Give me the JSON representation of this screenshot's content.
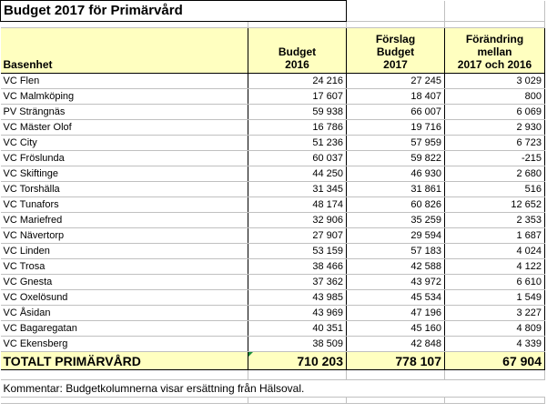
{
  "title": "Budget 2017 för Primärvård",
  "headers": {
    "col0": "Basenhet",
    "col1": [
      "Budget",
      "2016"
    ],
    "col2": [
      "Förslag",
      "Budget",
      "2017"
    ],
    "col3": [
      "Förändring",
      "mellan",
      "2017 och 2016"
    ]
  },
  "rows": [
    {
      "name": "VC Flen",
      "b2016": "24 216",
      "f2017": "27 245",
      "diff": "3 029"
    },
    {
      "name": "VC Malmköping",
      "b2016": "17 607",
      "f2017": "18 407",
      "diff": "800"
    },
    {
      "name": "PV Strängnäs",
      "b2016": "59 938",
      "f2017": "66 007",
      "diff": "6 069"
    },
    {
      "name": "VC Mäster Olof",
      "b2016": "16 786",
      "f2017": "19 716",
      "diff": "2 930"
    },
    {
      "name": "VC City",
      "b2016": "51 236",
      "f2017": "57 959",
      "diff": "6 723"
    },
    {
      "name": "VC Fröslunda",
      "b2016": "60 037",
      "f2017": "59 822",
      "diff": "-215"
    },
    {
      "name": "VC Skiftinge",
      "b2016": "44 250",
      "f2017": "46 930",
      "diff": "2 680"
    },
    {
      "name": "VC Torshälla",
      "b2016": "31 345",
      "f2017": "31 861",
      "diff": "516"
    },
    {
      "name": "VC Tunafors",
      "b2016": "48 174",
      "f2017": "60 826",
      "diff": "12 652"
    },
    {
      "name": "VC Mariefred",
      "b2016": "32 906",
      "f2017": "35 259",
      "diff": "2 353"
    },
    {
      "name": "VC Nävertorp",
      "b2016": "27 907",
      "f2017": "29 594",
      "diff": "1 687"
    },
    {
      "name": "VC Linden",
      "b2016": "53 159",
      "f2017": "57 183",
      "diff": "4 024"
    },
    {
      "name": "VC Trosa",
      "b2016": "38 466",
      "f2017": "42 588",
      "diff": "4 122"
    },
    {
      "name": "VC Gnesta",
      "b2016": "37 362",
      "f2017": "43 972",
      "diff": "6 610"
    },
    {
      "name": "VC Oxelösund",
      "b2016": "43 985",
      "f2017": "45 534",
      "diff": "1 549"
    },
    {
      "name": "VC Åsidan",
      "b2016": "43 969",
      "f2017": "47 196",
      "diff": "3 227"
    },
    {
      "name": "VC Bagaregatan",
      "b2016": "40 351",
      "f2017": "45 160",
      "diff": "4 809"
    },
    {
      "name": "VC Ekensberg",
      "b2016": "38 509",
      "f2017": "42 848",
      "diff": "4 339"
    }
  ],
  "total": {
    "label": "TOTALT PRIMÄRVÅRD",
    "b2016": "710 203",
    "f2017": "778 107",
    "diff": "67 904"
  },
  "comment": "Kommentar: Budgetkolumnerna visar ersättning från Hälsoval.",
  "colors": {
    "highlight": "#ffffc0",
    "marker": "#1a8f3a"
  }
}
